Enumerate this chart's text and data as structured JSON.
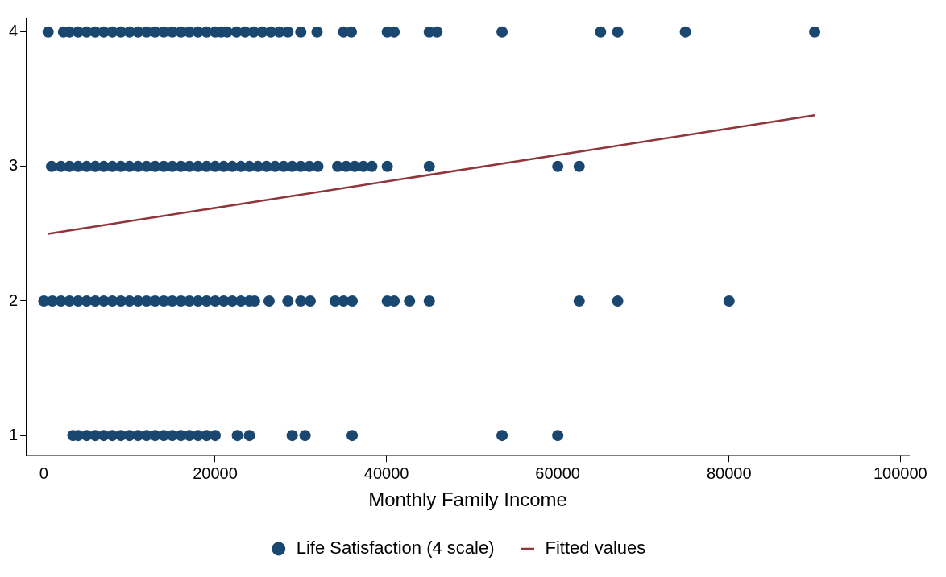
{
  "chart_data": {
    "type": "scatter",
    "xlabel": "Monthly Family Income",
    "xlim": [
      -2000,
      101000
    ],
    "xticks": [
      0,
      20000,
      40000,
      60000,
      80000,
      100000
    ],
    "ylim": [
      0.85,
      4.1
    ],
    "yticks": [
      1,
      2,
      3,
      4
    ],
    "grid": false,
    "legend": "bottom",
    "series": [
      {
        "name": "Life Satisfaction (4 scale)",
        "type": "scatter",
        "color": "#1a476f",
        "marker": "circle",
        "x": [
          500,
          2300,
          3000,
          4000,
          5000,
          6000,
          7000,
          8000,
          9000,
          10000,
          11000,
          12000,
          13000,
          14000,
          15000,
          16000,
          17000,
          18000,
          19000,
          20000,
          20700,
          21400,
          22500,
          23500,
          24500,
          25500,
          26500,
          27500,
          28500,
          30000,
          31900,
          35000,
          35900,
          40100,
          40900,
          45000,
          45900,
          53500,
          65000,
          67000,
          74900,
          90000,
          900,
          2000,
          3000,
          4000,
          5000,
          6000,
          7000,
          8000,
          9000,
          10000,
          11000,
          12000,
          13000,
          14000,
          15000,
          16000,
          17000,
          18000,
          19000,
          20000,
          21000,
          22000,
          23000,
          24000,
          25000,
          26000,
          27000,
          28000,
          29000,
          30000,
          31000,
          32000,
          34300,
          35300,
          36300,
          37300,
          38300,
          40100,
          45000,
          60000,
          62500,
          0,
          1000,
          2000,
          3000,
          4000,
          5000,
          6000,
          7000,
          8000,
          9000,
          10000,
          11000,
          12000,
          13000,
          14000,
          15000,
          16000,
          17000,
          18000,
          19000,
          20000,
          21000,
          22000,
          23000,
          24000,
          24600,
          26300,
          28500,
          30000,
          31100,
          34000,
          35000,
          36000,
          40100,
          40900,
          42700,
          45000,
          62500,
          67000,
          80000,
          3400,
          4000,
          5000,
          6000,
          7000,
          8000,
          9000,
          10000,
          11000,
          12000,
          13000,
          14000,
          15000,
          16000,
          17000,
          18000,
          19000,
          20000,
          22600,
          24000,
          29000,
          30500,
          36000,
          53500,
          60000
        ],
        "values": [
          4,
          4,
          4,
          4,
          4,
          4,
          4,
          4,
          4,
          4,
          4,
          4,
          4,
          4,
          4,
          4,
          4,
          4,
          4,
          4,
          4,
          4,
          4,
          4,
          4,
          4,
          4,
          4,
          4,
          4,
          4,
          4,
          4,
          4,
          4,
          4,
          4,
          4,
          4,
          4,
          4,
          4,
          3,
          3,
          3,
          3,
          3,
          3,
          3,
          3,
          3,
          3,
          3,
          3,
          3,
          3,
          3,
          3,
          3,
          3,
          3,
          3,
          3,
          3,
          3,
          3,
          3,
          3,
          3,
          3,
          3,
          3,
          3,
          3,
          3,
          3,
          3,
          3,
          3,
          3,
          3,
          3,
          3,
          2,
          2,
          2,
          2,
          2,
          2,
          2,
          2,
          2,
          2,
          2,
          2,
          2,
          2,
          2,
          2,
          2,
          2,
          2,
          2,
          2,
          2,
          2,
          2,
          2,
          2,
          2,
          2,
          2,
          2,
          2,
          2,
          2,
          2,
          2,
          2,
          2,
          2,
          2,
          2,
          1,
          1,
          1,
          1,
          1,
          1,
          1,
          1,
          1,
          1,
          1,
          1,
          1,
          1,
          1,
          1,
          1,
          1,
          1,
          1,
          1,
          1,
          1,
          1,
          1
        ]
      },
      {
        "name": "Fitted values",
        "type": "line",
        "color": "#90353b",
        "marker": "none",
        "x": [
          500,
          90000
        ],
        "values": [
          2.5,
          3.38
        ]
      }
    ]
  }
}
